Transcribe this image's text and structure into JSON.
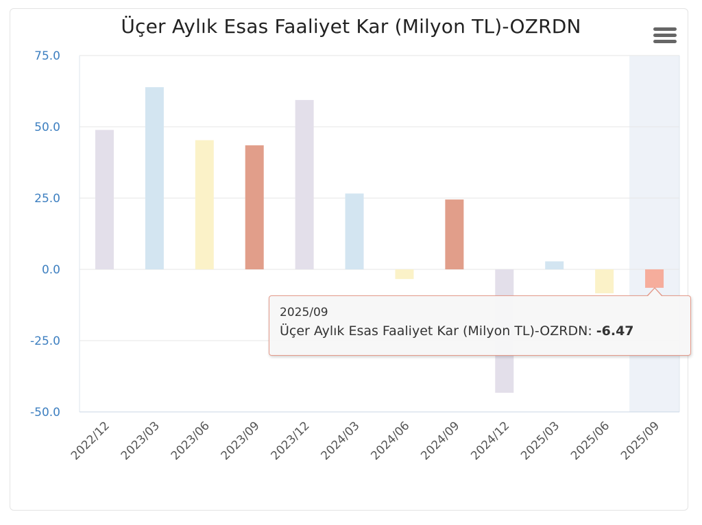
{
  "chart_data": {
    "type": "bar",
    "title": "Üçer Aylık Esas Faaliyet Kar (Milyon TL)-OZRDN",
    "categories": [
      "2022/12",
      "2023/03",
      "2023/06",
      "2023/09",
      "2023/12",
      "2024/03",
      "2024/06",
      "2024/09",
      "2024/12",
      "2025/03",
      "2025/06",
      "2025/09"
    ],
    "series": [
      {
        "name": "Üçer Aylık Esas Faaliyet Kar (Milyon TL)-OZRDN",
        "values": [
          48.9,
          63.9,
          45.3,
          43.5,
          59.4,
          26.6,
          -3.4,
          24.5,
          -43.3,
          2.8,
          -8.4,
          -6.47
        ]
      }
    ],
    "bar_colors": [
      "#e3dfea",
      "#d3e5f1",
      "#fbf2c8",
      "#e19e8a",
      "#e3dfea",
      "#d3e5f1",
      "#fbf2c8",
      "#e19e8a",
      "#e3dfea",
      "#d3e5f1",
      "#fbf2c8",
      "#f6ad9c"
    ],
    "ylim": [
      -50,
      75
    ],
    "yticks": [
      "75.0",
      "50.0",
      "25.0",
      "0.0",
      "-25.0",
      "-50.0"
    ],
    "ytick_values": [
      75,
      50,
      25,
      0,
      -25,
      -50
    ],
    "xlabel": "",
    "ylabel": "",
    "grid": true,
    "highlighted_category": "2025/09",
    "axis_label_color": "#3d7fc0",
    "highlight_band_color": "#eef2f8"
  },
  "tooltip": {
    "x_label": "2025/09",
    "series_label": "Üçer Aylık Esas Faaliyet Kar (Milyon TL)-OZRDN: ",
    "value": "-6.47"
  },
  "menu": {
    "icon": "hamburger-menu-icon"
  }
}
